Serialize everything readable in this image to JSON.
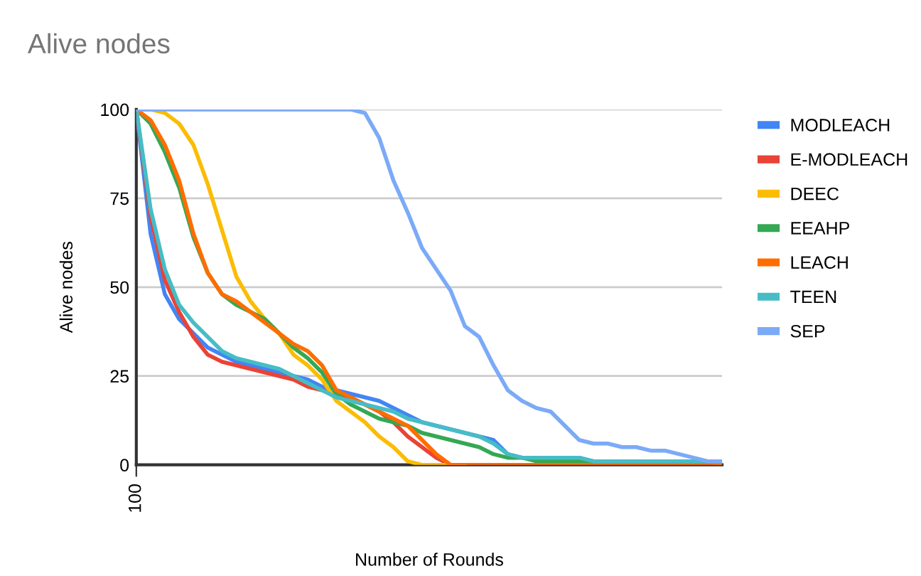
{
  "chart_data": {
    "type": "line",
    "title": "Alive nodes",
    "xlabel": "Number of Rounds",
    "ylabel": "Alive nodes",
    "categories": [
      "100",
      null,
      null,
      null,
      null,
      null,
      null,
      null,
      null,
      null,
      null,
      null,
      null,
      null,
      null,
      null,
      null,
      null,
      null,
      null,
      null,
      null,
      null,
      null,
      null,
      null,
      null,
      null,
      null,
      null,
      null,
      null,
      null,
      null,
      null,
      null,
      null,
      null,
      null,
      null,
      null,
      null
    ],
    "ylim": [
      0,
      100
    ],
    "yticks": [
      0,
      25,
      50,
      75,
      100
    ],
    "grid": "y",
    "legend": "right",
    "marker": "none",
    "line_style": "solid",
    "series": [
      {
        "name": "MODLEACH",
        "color": "#4285f4",
        "values": [
          100,
          65,
          48,
          41,
          37,
          33,
          31,
          29,
          28,
          27,
          26,
          25,
          24,
          22,
          21,
          20,
          19,
          18,
          16,
          14,
          12,
          11,
          10,
          9,
          8,
          7,
          3,
          2,
          2,
          2,
          2,
          2,
          1,
          1,
          1,
          1,
          1,
          1,
          1,
          1,
          1,
          0
        ]
      },
      {
        "name": "E-MODLEACH",
        "color": "#ea4335",
        "values": [
          100,
          70,
          52,
          43,
          36,
          31,
          29,
          28,
          27,
          26,
          25,
          24,
          22,
          21,
          20,
          19,
          17,
          15,
          12,
          8,
          5,
          2,
          0,
          0,
          null,
          null,
          null,
          null,
          null,
          null,
          null,
          null,
          null,
          null,
          null,
          null,
          null,
          null,
          null,
          null,
          null,
          null
        ]
      },
      {
        "name": "DEEC",
        "color": "#fbbc04",
        "values": [
          100,
          100,
          99,
          96,
          90,
          79,
          66,
          53,
          46,
          41,
          37,
          31,
          28,
          24,
          18,
          15,
          12,
          8,
          5,
          1,
          0,
          0,
          0,
          0,
          null,
          null,
          null,
          null,
          null,
          null,
          null,
          null,
          null,
          null,
          null,
          null,
          null,
          null,
          null,
          null,
          null,
          null
        ]
      },
      {
        "name": "EEAHP",
        "color": "#34a853",
        "values": [
          100,
          96,
          88,
          78,
          64,
          54,
          48,
          45,
          43,
          41,
          37,
          33,
          30,
          26,
          20,
          17,
          15,
          13,
          12,
          11,
          9,
          8,
          7,
          6,
          5,
          3,
          2,
          2,
          1,
          1,
          1,
          1,
          1,
          1,
          null,
          null,
          null,
          null,
          null,
          null,
          null,
          null
        ]
      },
      {
        "name": "LEACH",
        "color": "#ff6d01",
        "values": [
          100,
          97,
          90,
          80,
          65,
          54,
          48,
          46,
          43,
          40,
          37,
          34,
          32,
          28,
          21,
          19,
          17,
          15,
          13,
          11,
          7,
          3,
          0,
          0,
          0,
          0,
          0,
          0,
          0,
          0,
          0,
          0,
          0,
          0,
          0,
          0,
          0,
          0,
          0,
          0,
          0,
          0
        ]
      },
      {
        "name": "TEEN",
        "color": "#46bdc6",
        "values": [
          100,
          72,
          55,
          45,
          40,
          36,
          32,
          30,
          29,
          28,
          27,
          25,
          23,
          21,
          19,
          18,
          17,
          16,
          15,
          13,
          12,
          11,
          10,
          9,
          8,
          6,
          3,
          2,
          2,
          2,
          2,
          2,
          1,
          1,
          1,
          1,
          1,
          1,
          1,
          1,
          1,
          1
        ]
      },
      {
        "name": "SEP",
        "color": "#7baaf7",
        "values": [
          100,
          100,
          100,
          100,
          100,
          100,
          100,
          100,
          100,
          100,
          100,
          100,
          100,
          100,
          100,
          100,
          99,
          92,
          80,
          71,
          61,
          55,
          49,
          39,
          36,
          28,
          21,
          18,
          16,
          15,
          11,
          7,
          6,
          6,
          5,
          5,
          4,
          4,
          3,
          2,
          1,
          1
        ]
      }
    ]
  }
}
